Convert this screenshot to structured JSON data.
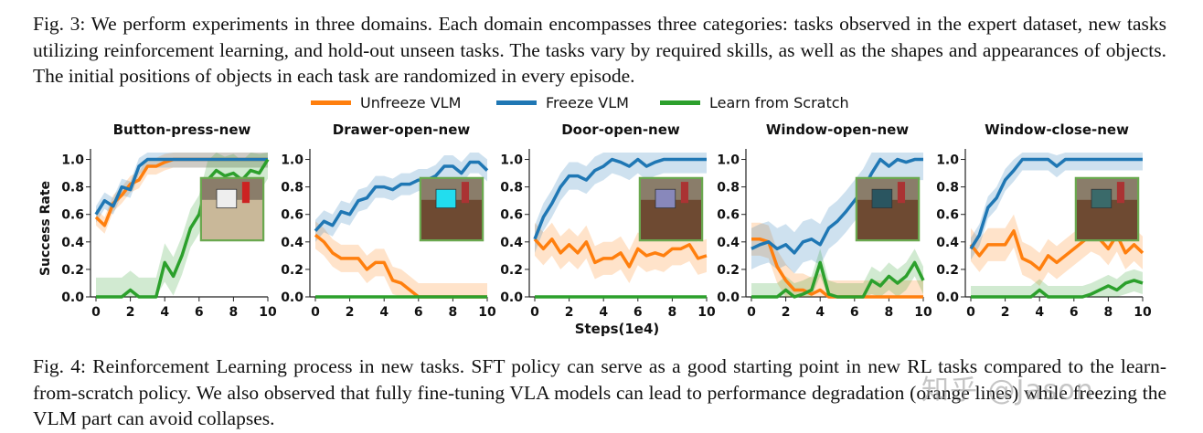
{
  "caption_fig3": "Fig. 3: We perform experiments in three domains. Each domain encompasses three categories: tasks observed in the expert dataset, new tasks utilizing reinforcement learning, and hold-out unseen tasks. The tasks vary by required skills, as well as the shapes and appearances of objects. The initial positions of objects in each task are randomized in every episode.",
  "caption_fig4": "Fig. 4: Reinforcement Learning process in new tasks. SFT policy can serve as a good starting point in new RL tasks compared to the learn-from-scratch policy. We also observed that fully fine-tuning VLA models can lead to performance degradation (orange lines) while freezing the VLM part can avoid collapses.",
  "watermark": "知乎 @Jason",
  "legend": [
    {
      "name": "Unfreeze VLM",
      "color": "#ff7f0e"
    },
    {
      "name": "Freeze VLM",
      "color": "#1f77b4"
    },
    {
      "name": "Learn from Scratch",
      "color": "#2ca02c"
    }
  ],
  "xlabel": "Steps(1e4)",
  "ylabel": "Success Rate",
  "xticks": [
    "0",
    "2",
    "4",
    "6",
    "8",
    "10"
  ],
  "yticks": [
    "0.0",
    "0.2",
    "0.4",
    "0.6",
    "0.8",
    "1.0"
  ],
  "chart_data": [
    {
      "type": "line",
      "title": "Button-press-new",
      "xlim": [
        0,
        10
      ],
      "ylim": [
        0,
        1.05
      ],
      "x": [
        0,
        0.5,
        1,
        1.5,
        2,
        2.5,
        3,
        3.5,
        4,
        4.5,
        5,
        5.5,
        6,
        6.5,
        7,
        7.5,
        8,
        8.5,
        9,
        9.5,
        10
      ],
      "series": [
        {
          "name": "Unfreeze VLM",
          "values": [
            0.58,
            0.52,
            0.68,
            0.74,
            0.82,
            0.85,
            0.95,
            0.95,
            0.98,
            1.0,
            1.0,
            1.0,
            1.0,
            1.0,
            1.0,
            1.0,
            1.0,
            1.0,
            1.0,
            1.0,
            1.0
          ],
          "band": 0.06
        },
        {
          "name": "Freeze VLM",
          "values": [
            0.6,
            0.7,
            0.66,
            0.8,
            0.78,
            0.95,
            1.0,
            1.0,
            1.0,
            1.0,
            1.0,
            1.0,
            1.0,
            1.0,
            1.0,
            1.0,
            1.0,
            1.0,
            1.0,
            1.0,
            1.0
          ],
          "band": 0.06
        },
        {
          "name": "Learn from Scratch",
          "values": [
            0.0,
            0.0,
            0.0,
            0.0,
            0.05,
            0.0,
            0.0,
            0.0,
            0.25,
            0.15,
            0.3,
            0.5,
            0.6,
            0.85,
            0.92,
            0.88,
            0.9,
            0.85,
            0.92,
            0.9,
            1.0
          ],
          "band": 0.14
        }
      ]
    },
    {
      "type": "line",
      "title": "Drawer-open-new",
      "xlim": [
        0,
        10
      ],
      "ylim": [
        0,
        1.05
      ],
      "x": [
        0,
        0.5,
        1,
        1.5,
        2,
        2.5,
        3,
        3.5,
        4,
        4.5,
        5,
        5.5,
        6,
        6.5,
        7,
        7.5,
        8,
        8.5,
        9,
        9.5,
        10
      ],
      "series": [
        {
          "name": "Unfreeze VLM",
          "values": [
            0.45,
            0.4,
            0.32,
            0.28,
            0.28,
            0.28,
            0.2,
            0.25,
            0.25,
            0.12,
            0.1,
            0.05,
            0.0,
            0.0,
            0.0,
            0.0,
            0.0,
            0.0,
            0.0,
            0.0,
            0.0
          ],
          "band": 0.1
        },
        {
          "name": "Freeze VLM",
          "values": [
            0.48,
            0.55,
            0.52,
            0.62,
            0.6,
            0.7,
            0.72,
            0.8,
            0.8,
            0.78,
            0.82,
            0.82,
            0.85,
            0.85,
            0.88,
            0.95,
            0.95,
            0.9,
            0.98,
            0.98,
            0.92
          ],
          "band": 0.08
        },
        {
          "name": "Learn from Scratch",
          "values": [
            0.0,
            0.0,
            0.0,
            0.0,
            0.0,
            0.0,
            0.0,
            0.0,
            0.0,
            0.0,
            0.0,
            0.0,
            0.0,
            0.0,
            0.0,
            0.0,
            0.0,
            0.0,
            0.0,
            0.0,
            0.0
          ],
          "band": 0.0
        }
      ]
    },
    {
      "type": "line",
      "title": "Door-open-new",
      "xlim": [
        0,
        10
      ],
      "ylim": [
        0,
        1.05
      ],
      "x": [
        0,
        0.5,
        1,
        1.5,
        2,
        2.5,
        3,
        3.5,
        4,
        4.5,
        5,
        5.5,
        6,
        6.5,
        7,
        7.5,
        8,
        8.5,
        9,
        9.5,
        10
      ],
      "series": [
        {
          "name": "Unfreeze VLM",
          "values": [
            0.42,
            0.35,
            0.42,
            0.32,
            0.38,
            0.32,
            0.4,
            0.25,
            0.28,
            0.28,
            0.32,
            0.22,
            0.35,
            0.3,
            0.32,
            0.3,
            0.35,
            0.35,
            0.38,
            0.28,
            0.3
          ],
          "band": 0.12
        },
        {
          "name": "Freeze VLM",
          "values": [
            0.42,
            0.58,
            0.68,
            0.8,
            0.88,
            0.88,
            0.85,
            0.92,
            0.95,
            1.0,
            0.98,
            0.95,
            1.0,
            0.95,
            0.98,
            1.0,
            1.0,
            1.0,
            1.0,
            1.0,
            1.0
          ],
          "band": 0.1
        },
        {
          "name": "Learn from Scratch",
          "values": [
            0.0,
            0.0,
            0.0,
            0.0,
            0.0,
            0.0,
            0.0,
            0.0,
            0.0,
            0.0,
            0.0,
            0.0,
            0.0,
            0.0,
            0.0,
            0.0,
            0.0,
            0.0,
            0.0,
            0.0,
            0.0
          ],
          "band": 0.0
        }
      ]
    },
    {
      "type": "line",
      "title": "Window-open-new",
      "xlim": [
        0,
        10
      ],
      "ylim": [
        0,
        1.05
      ],
      "x": [
        0,
        0.5,
        1,
        1.5,
        2,
        2.5,
        3,
        3.5,
        4,
        4.5,
        5,
        5.5,
        6,
        6.5,
        7,
        7.5,
        8,
        8.5,
        9,
        9.5,
        10
      ],
      "series": [
        {
          "name": "Unfreeze VLM",
          "values": [
            0.42,
            0.42,
            0.4,
            0.22,
            0.12,
            0.05,
            0.05,
            0.02,
            0.05,
            0.0,
            0.0,
            0.0,
            0.0,
            0.0,
            0.0,
            0.0,
            0.0,
            0.0,
            0.0,
            0.0,
            0.0
          ],
          "band": 0.12
        },
        {
          "name": "Freeze VLM",
          "values": [
            0.35,
            0.38,
            0.4,
            0.35,
            0.38,
            0.32,
            0.4,
            0.42,
            0.38,
            0.5,
            0.55,
            0.62,
            0.7,
            0.78,
            0.9,
            1.0,
            0.95,
            1.0,
            0.98,
            1.0,
            1.0
          ],
          "band": 0.15
        },
        {
          "name": "Learn from Scratch",
          "values": [
            0.0,
            0.0,
            0.0,
            0.0,
            0.05,
            0.0,
            0.02,
            0.05,
            0.25,
            0.02,
            0.0,
            0.0,
            0.0,
            0.0,
            0.12,
            0.08,
            0.15,
            0.1,
            0.15,
            0.25,
            0.12
          ],
          "band": 0.1
        }
      ]
    },
    {
      "type": "line",
      "title": "Window-close-new",
      "xlim": [
        0,
        10
      ],
      "ylim": [
        0,
        1.05
      ],
      "x": [
        0,
        0.5,
        1,
        1.5,
        2,
        2.5,
        3,
        3.5,
        4,
        4.5,
        5,
        5.5,
        6,
        6.5,
        7,
        7.5,
        8,
        8.5,
        9,
        9.5,
        10
      ],
      "series": [
        {
          "name": "Unfreeze VLM",
          "values": [
            0.38,
            0.3,
            0.38,
            0.38,
            0.38,
            0.48,
            0.28,
            0.25,
            0.2,
            0.3,
            0.25,
            0.3,
            0.35,
            0.4,
            0.45,
            0.42,
            0.35,
            0.45,
            0.32,
            0.38,
            0.32
          ],
          "band": 0.12
        },
        {
          "name": "Freeze VLM",
          "values": [
            0.35,
            0.45,
            0.65,
            0.72,
            0.85,
            0.92,
            1.0,
            1.0,
            1.0,
            1.0,
            0.95,
            1.0,
            1.0,
            1.0,
            1.0,
            1.0,
            1.0,
            1.0,
            1.0,
            1.0,
            1.0
          ],
          "band": 0.08
        },
        {
          "name": "Learn from Scratch",
          "values": [
            0.0,
            0.0,
            0.0,
            0.0,
            0.0,
            0.0,
            0.0,
            0.0,
            0.05,
            0.0,
            0.0,
            0.0,
            0.0,
            0.0,
            0.02,
            0.05,
            0.08,
            0.05,
            0.1,
            0.12,
            0.1
          ],
          "band": 0.08
        }
      ]
    }
  ]
}
